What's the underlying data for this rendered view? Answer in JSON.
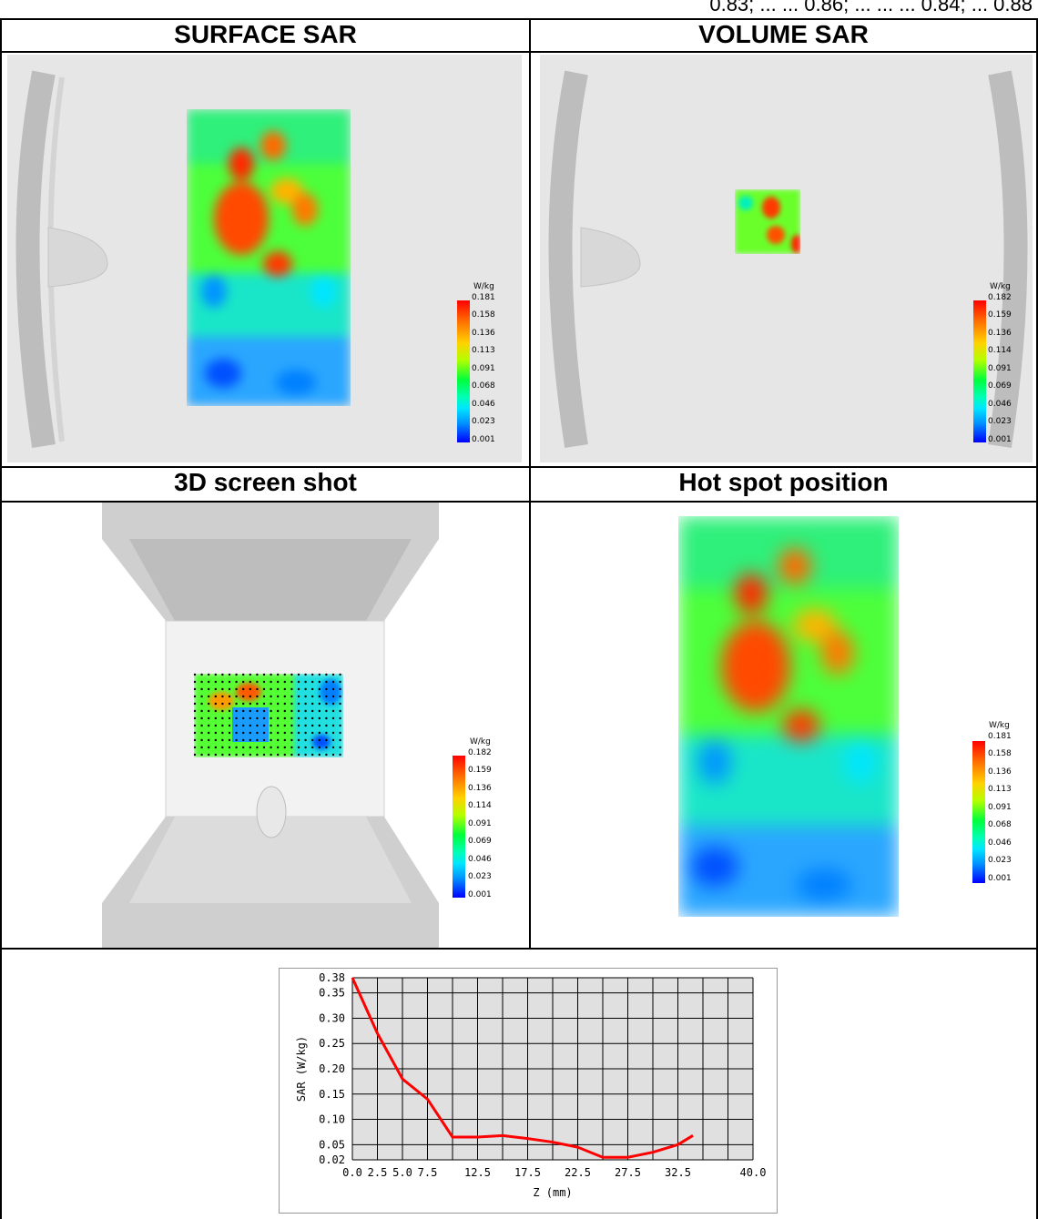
{
  "header_fragment": "0.83; ... ... 0.86; ... ... ... 0.84; ... 0.88",
  "panels": {
    "surface": {
      "title": "SURFACE SAR",
      "unit": "W/kg",
      "ticks": [
        "0.181",
        "0.158",
        "0.136",
        "0.113",
        "0.091",
        "0.068",
        "0.046",
        "0.023",
        "0.001"
      ]
    },
    "volume": {
      "title": "VOLUME SAR",
      "unit": "W/kg",
      "ticks": [
        "0.182",
        "0.159",
        "0.136",
        "0.114",
        "0.091",
        "0.069",
        "0.046",
        "0.023",
        "0.001"
      ]
    },
    "screenshot3d": {
      "title": "3D screen shot",
      "unit": "W/kg",
      "ticks": [
        "0.182",
        "0.159",
        "0.136",
        "0.114",
        "0.091",
        "0.069",
        "0.046",
        "0.023",
        "0.001"
      ]
    },
    "hotspot": {
      "title": "Hot spot position",
      "unit": "W/kg",
      "ticks": [
        "0.181",
        "0.158",
        "0.136",
        "0.113",
        "0.091",
        "0.068",
        "0.046",
        "0.023",
        "0.001"
      ]
    }
  },
  "colors": {
    "line": "#ff0000",
    "plot_bg": "#e0e0e0",
    "colormap": [
      "#ff0000",
      "#ffd200",
      "#00ff3c",
      "#00e6ff",
      "#0000ff"
    ]
  },
  "chart_data": {
    "type": "line",
    "xlabel": "Z (mm)",
    "ylabel": "SAR (W/kg)",
    "xlim": [
      0,
      40
    ],
    "ylim": [
      0.02,
      0.38
    ],
    "x_tick_labels": [
      "0.0",
      "2.5",
      "5.0",
      "7.5",
      "12.5",
      "17.5",
      "22.5",
      "27.5",
      "32.5",
      "40.0"
    ],
    "x_tick_values": [
      0,
      2.5,
      5,
      7.5,
      12.5,
      17.5,
      22.5,
      27.5,
      32.5,
      40
    ],
    "y_tick_labels": [
      "0.38",
      "0.35",
      "0.30",
      "0.25",
      "0.20",
      "0.15",
      "0.10",
      "0.05",
      "0.02"
    ],
    "y_tick_values": [
      0.38,
      0.35,
      0.3,
      0.25,
      0.2,
      0.15,
      0.1,
      0.05,
      0.02
    ],
    "grid": true,
    "series": [
      {
        "x": [
          0,
          2.5,
          5,
          7.5,
          10,
          12.5,
          15,
          17.5,
          20,
          22.5,
          25,
          27.5,
          30,
          32.5,
          34
        ],
        "values": [
          0.38,
          0.27,
          0.18,
          0.14,
          0.065,
          0.065,
          0.068,
          0.062,
          0.055,
          0.045,
          0.025,
          0.025,
          0.035,
          0.05,
          0.068
        ]
      }
    ]
  }
}
